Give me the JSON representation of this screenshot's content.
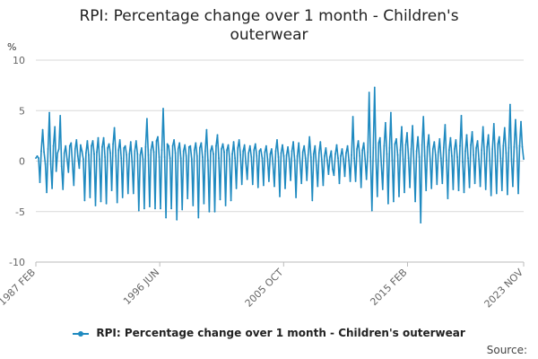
{
  "colors": {
    "series": "#1f8ac0",
    "grid": "#d9d9d9",
    "axis": "#bbbbbb"
  },
  "source_label": "Source:",
  "chart_data": {
    "type": "line",
    "title_lines": [
      "RPI: Percentage change over 1 month - Children's",
      "outerwear"
    ],
    "ylabel": "%",
    "ylim": [
      -10,
      10
    ],
    "yticks": [
      "10",
      "5",
      "0",
      "-5",
      "-10"
    ],
    "xlim": [
      "1987-02",
      "2023-11"
    ],
    "xticks": [
      "1987 FEB",
      "1996 JUN",
      "2005 OCT",
      "2015 FEB",
      "2023 NOV"
    ],
    "grid": true,
    "legend_position": "bottom",
    "series": [
      {
        "name": "RPI: Percentage change over 1 month - Children's outerwear",
        "pattern": "monthly values; low amplitude (about -5 to +5) through 2007, larger swings (about -6 to +7) after 2007",
        "values": [
          0.3,
          0.5,
          0.3,
          -2.1,
          1.0,
          3.1,
          0.9,
          -0.3,
          -3.1,
          1.2,
          4.8,
          -0.3,
          -2.7,
          1.5,
          3.4,
          -1.0,
          0.8,
          1.2,
          4.5,
          -0.5,
          -2.8,
          0.8,
          1.5,
          0.2,
          -1.1,
          1.5,
          1.8,
          -0.3,
          -2.4,
          1.2,
          2.1,
          0.5,
          -0.7,
          1.6,
          1.0,
          0.2,
          -3.9,
          0.8,
          2.0,
          0.6,
          -3.6,
          1.5,
          2.0,
          0.7,
          -4.4,
          0.9,
          2.3,
          0.2,
          -4.0,
          1.4,
          2.3,
          0.4,
          -4.2,
          1.3,
          1.7,
          0.8,
          -2.9,
          1.7,
          3.3,
          0.5,
          -4.1,
          1.1,
          2.1,
          0.3,
          -3.6,
          1.3,
          1.5,
          0.6,
          -3.2,
          0.7,
          1.9,
          -0.1,
          -3.2,
          1.0,
          2.0,
          0.7,
          -4.9,
          0.6,
          1.3,
          0.2,
          -4.7,
          1.4,
          4.2,
          0.6,
          -4.5,
          1.1,
          1.9,
          0.9,
          -4.7,
          2.0,
          2.4,
          0.4,
          -4.7,
          1.1,
          5.2,
          0.4,
          -5.6,
          1.7,
          1.5,
          0.3,
          -4.7,
          1.5,
          2.1,
          0.8,
          -5.8,
          1.2,
          1.8,
          0.3,
          -4.8,
          1.0,
          1.6,
          0.5,
          -3.7,
          1.4,
          1.5,
          0.2,
          -4.4,
          1.1,
          1.8,
          0.5,
          -5.6,
          1.3,
          1.8,
          0.4,
          -4.2,
          1.0,
          3.1,
          0.1,
          -5.0,
          1.0,
          1.5,
          0.7,
          -5.0,
          1.5,
          2.6,
          0.3,
          -3.8,
          1.2,
          1.7,
          0.9,
          -4.4,
          1.1,
          1.6,
          0.2,
          -3.9,
          0.7,
          1.9,
          0.3,
          -2.7,
          1.3,
          2.1,
          0.6,
          -2.3,
          1.0,
          1.6,
          -0.2,
          -1.8,
          0.8,
          1.5,
          0.4,
          -2.3,
          1.1,
          1.7,
          0.5,
          -2.6,
          1.0,
          1.2,
          0.3,
          -2.4,
          0.9,
          1.5,
          0.2,
          -2.0,
          0.7,
          1.2,
          -0.3,
          -2.5,
          1.0,
          2.1,
          0.4,
          -3.5,
          0.8,
          1.6,
          0.5,
          -2.7,
          0.6,
          1.4,
          0.2,
          -1.9,
          1.0,
          1.9,
          0.1,
          -3.6,
          0.5,
          1.8,
          -0.2,
          -2.2,
          0.9,
          1.5,
          0.3,
          -1.9,
          0.6,
          2.4,
          0.4,
          -3.9,
          0.7,
          1.5,
          -0.4,
          -2.5,
          0.8,
          1.9,
          0.2,
          -2.4,
          0.5,
          1.3,
          0.1,
          -1.3,
          0.4,
          1.0,
          -0.8,
          -1.4,
          0.7,
          1.6,
          0.3,
          -2.2,
          0.5,
          1.2,
          0.2,
          -1.5,
          0.8,
          1.5,
          0.1,
          -2.0,
          0.6,
          4.4,
          0.3,
          -2.0,
          1.2,
          2.0,
          0.5,
          -2.6,
          1.1,
          1.8,
          0.2,
          -1.8,
          0.9,
          6.8,
          0.4,
          -4.9,
          1.3,
          7.3,
          0.2,
          -3.5,
          1.8,
          2.3,
          -0.4,
          -2.8,
          1.5,
          3.8,
          0.7,
          -4.2,
          1.3,
          4.8,
          0.1,
          -4.0,
          1.7,
          2.2,
          0.6,
          -3.5,
          1.1,
          3.4,
          0.2,
          -3.1,
          1.6,
          2.8,
          0.3,
          -2.6,
          1.2,
          3.5,
          -0.2,
          -4.0,
          1.0,
          2.4,
          0.4,
          -6.1,
          1.6,
          4.4,
          0.5,
          -2.9,
          1.4,
          2.6,
          0.2,
          -2.7,
          1.2,
          1.9,
          0.6,
          -2.3,
          0.9,
          2.2,
          0.3,
          -2.2,
          1.3,
          3.6,
          0.1,
          -3.7,
          1.1,
          2.3,
          0.5,
          -2.8,
          1.2,
          2.1,
          0.4,
          -2.9,
          1.5,
          4.5,
          -0.1,
          -3.1,
          1.0,
          2.6,
          0.3,
          -2.6,
          1.6,
          2.9,
          0.6,
          -2.2,
          1.3,
          2.0,
          0.2,
          -2.5,
          1.1,
          3.4,
          0.7,
          -2.8,
          1.4,
          2.6,
          0.1,
          -3.4,
          1.2,
          3.7,
          0.5,
          -3.2,
          1.7,
          2.4,
          0.3,
          -2.9,
          1.5,
          3.3,
          0.8,
          -3.3,
          1.3,
          5.6,
          0.2,
          -2.5,
          1.4,
          4.1,
          1.3,
          -3.2,
          1.5,
          3.9,
          1.4,
          0.2
        ]
      }
    ]
  }
}
